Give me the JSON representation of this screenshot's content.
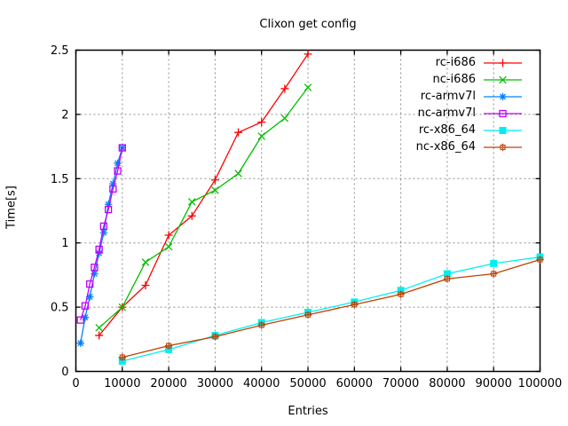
{
  "chart_data": {
    "type": "line",
    "title": "Clixon get config",
    "xlabel": "Entries",
    "ylabel": "Time[s]",
    "xlim": [
      0,
      100000
    ],
    "ylim": [
      0,
      2.5
    ],
    "x_ticks": [
      0,
      10000,
      20000,
      30000,
      40000,
      50000,
      60000,
      70000,
      80000,
      90000,
      100000
    ],
    "y_ticks": [
      0,
      0.5,
      1,
      1.5,
      2,
      2.5
    ],
    "grid": true,
    "legend_position": "top-right-inside",
    "background": "#ffffff",
    "series": [
      {
        "name": "rc-i686",
        "color": "#ff0000",
        "marker": "plus",
        "x": [
          5000,
          10000,
          15000,
          20000,
          25000,
          30000,
          35000,
          40000,
          45000,
          50000
        ],
        "y": [
          0.28,
          0.5,
          0.67,
          1.06,
          1.21,
          1.49,
          1.86,
          1.94,
          2.2,
          2.47
        ]
      },
      {
        "name": "nc-i686",
        "color": "#00c000",
        "marker": "cross",
        "x": [
          5000,
          10000,
          15000,
          20000,
          25000,
          30000,
          35000,
          40000,
          45000,
          50000
        ],
        "y": [
          0.34,
          0.5,
          0.85,
          0.97,
          1.32,
          1.41,
          1.54,
          1.83,
          1.97,
          2.21
        ]
      },
      {
        "name": "rc-armv7l",
        "color": "#0080ff",
        "marker": "asterisk",
        "x": [
          1000,
          2000,
          3000,
          4000,
          5000,
          6000,
          7000,
          8000,
          9000,
          10000
        ],
        "y": [
          0.22,
          0.42,
          0.58,
          0.76,
          0.92,
          1.08,
          1.3,
          1.46,
          1.62,
          1.74
        ]
      },
      {
        "name": "nc-armv7l",
        "color": "#c000ff",
        "marker": "square-open",
        "x": [
          1000,
          2000,
          3000,
          4000,
          5000,
          6000,
          7000,
          8000,
          9000,
          10000
        ],
        "y": [
          0.4,
          0.51,
          0.68,
          0.81,
          0.95,
          1.13,
          1.26,
          1.42,
          1.56,
          1.74
        ]
      },
      {
        "name": "rc-x86_64",
        "color": "#00eeee",
        "marker": "square-filled",
        "x": [
          10000,
          20000,
          30000,
          40000,
          50000,
          60000,
          70000,
          80000,
          90000,
          100000
        ],
        "y": [
          0.08,
          0.17,
          0.28,
          0.38,
          0.46,
          0.54,
          0.63,
          0.76,
          0.84,
          0.89
        ]
      },
      {
        "name": "nc-x86_64",
        "color": "#c04000",
        "marker": "square-plus",
        "x": [
          10000,
          20000,
          30000,
          40000,
          50000,
          60000,
          70000,
          80000,
          90000,
          100000
        ],
        "y": [
          0.11,
          0.2,
          0.27,
          0.36,
          0.44,
          0.52,
          0.6,
          0.72,
          0.76,
          0.87
        ]
      }
    ]
  }
}
